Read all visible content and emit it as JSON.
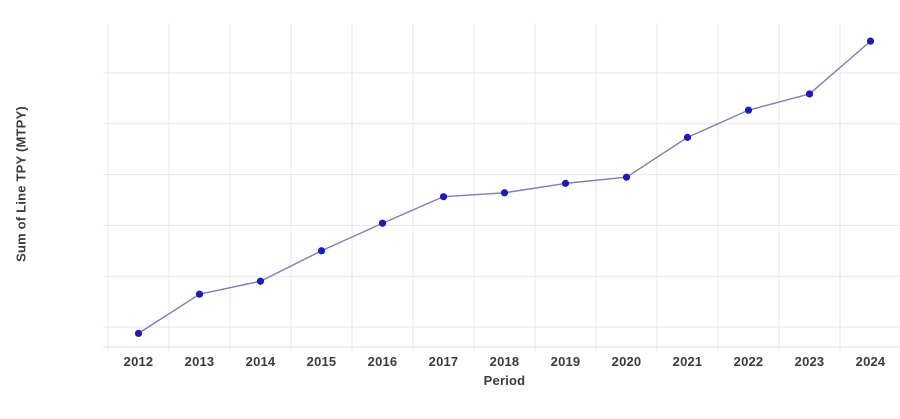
{
  "chart_data": {
    "type": "line",
    "title": "",
    "xlabel": "Period",
    "ylabel": "Sum of Line TPY (MTPY)",
    "categories": [
      "2012",
      "2013",
      "2014",
      "2015",
      "2016",
      "2017",
      "2018",
      "2019",
      "2020",
      "2021",
      "2022",
      "2023",
      "2024"
    ],
    "series": [
      {
        "name": "Sum of Line TPY (MTPY)",
        "values": [
          4.2,
          16.3,
          20.3,
          29.7,
          38.2,
          46.4,
          47.6,
          50.5,
          52.4,
          64.7,
          73.1,
          78.1,
          94.4
        ]
      }
    ],
    "ylim": [
      0,
      100
    ],
    "y_axis_tick_labels": "none",
    "grid": true,
    "legend": "none",
    "colors": {
      "point": "#1d1db5",
      "line": "#7b80b4",
      "grid": "#e7e7e7",
      "axis": "#dcdcdc",
      "text": "#3c3c3c",
      "background": "#ffffff"
    }
  }
}
